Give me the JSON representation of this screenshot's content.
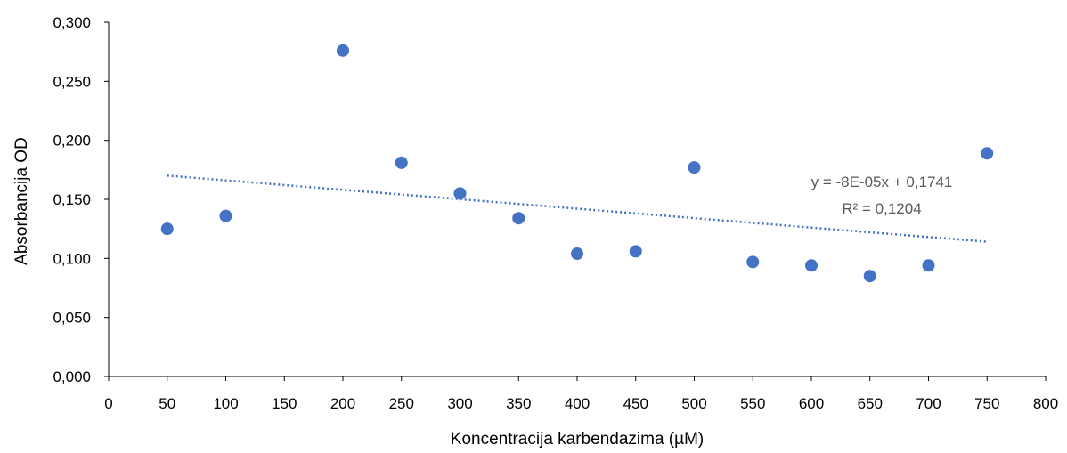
{
  "chart_data": {
    "type": "scatter",
    "xlabel": "Koncentracija karbendazima (µM)",
    "ylabel": "Absorbancija OD",
    "xlim": [
      0,
      800
    ],
    "ylim": [
      0,
      0.3
    ],
    "x_ticks": [
      "0",
      "50",
      "100",
      "150",
      "200",
      "250",
      "300",
      "350",
      "400",
      "450",
      "500",
      "550",
      "600",
      "650",
      "700",
      "750",
      "800"
    ],
    "y_ticks": [
      "0,000",
      "0,050",
      "0,100",
      "0,150",
      "0,200",
      "0,250",
      "0,300"
    ],
    "grid": false,
    "points": [
      {
        "x": 50,
        "y": 0.125
      },
      {
        "x": 100,
        "y": 0.136
      },
      {
        "x": 200,
        "y": 0.276
      },
      {
        "x": 250,
        "y": 0.181
      },
      {
        "x": 300,
        "y": 0.155
      },
      {
        "x": 350,
        "y": 0.134
      },
      {
        "x": 400,
        "y": 0.104
      },
      {
        "x": 450,
        "y": 0.106
      },
      {
        "x": 500,
        "y": 0.177
      },
      {
        "x": 550,
        "y": 0.097
      },
      {
        "x": 600,
        "y": 0.094
      },
      {
        "x": 650,
        "y": 0.085
      },
      {
        "x": 700,
        "y": 0.094
      },
      {
        "x": 750,
        "y": 0.189
      }
    ],
    "trendline": {
      "type": "linear",
      "slope": -8e-05,
      "intercept": 0.1741,
      "x_range": [
        50,
        750
      ],
      "equation": "y = -8E-05x + 0,1741",
      "r_squared": "R² = 0,1204"
    },
    "colors": {
      "marker": "#4472C4",
      "trendline": "#4472C4",
      "axis": "#000000",
      "equation_text": "#595959"
    }
  }
}
